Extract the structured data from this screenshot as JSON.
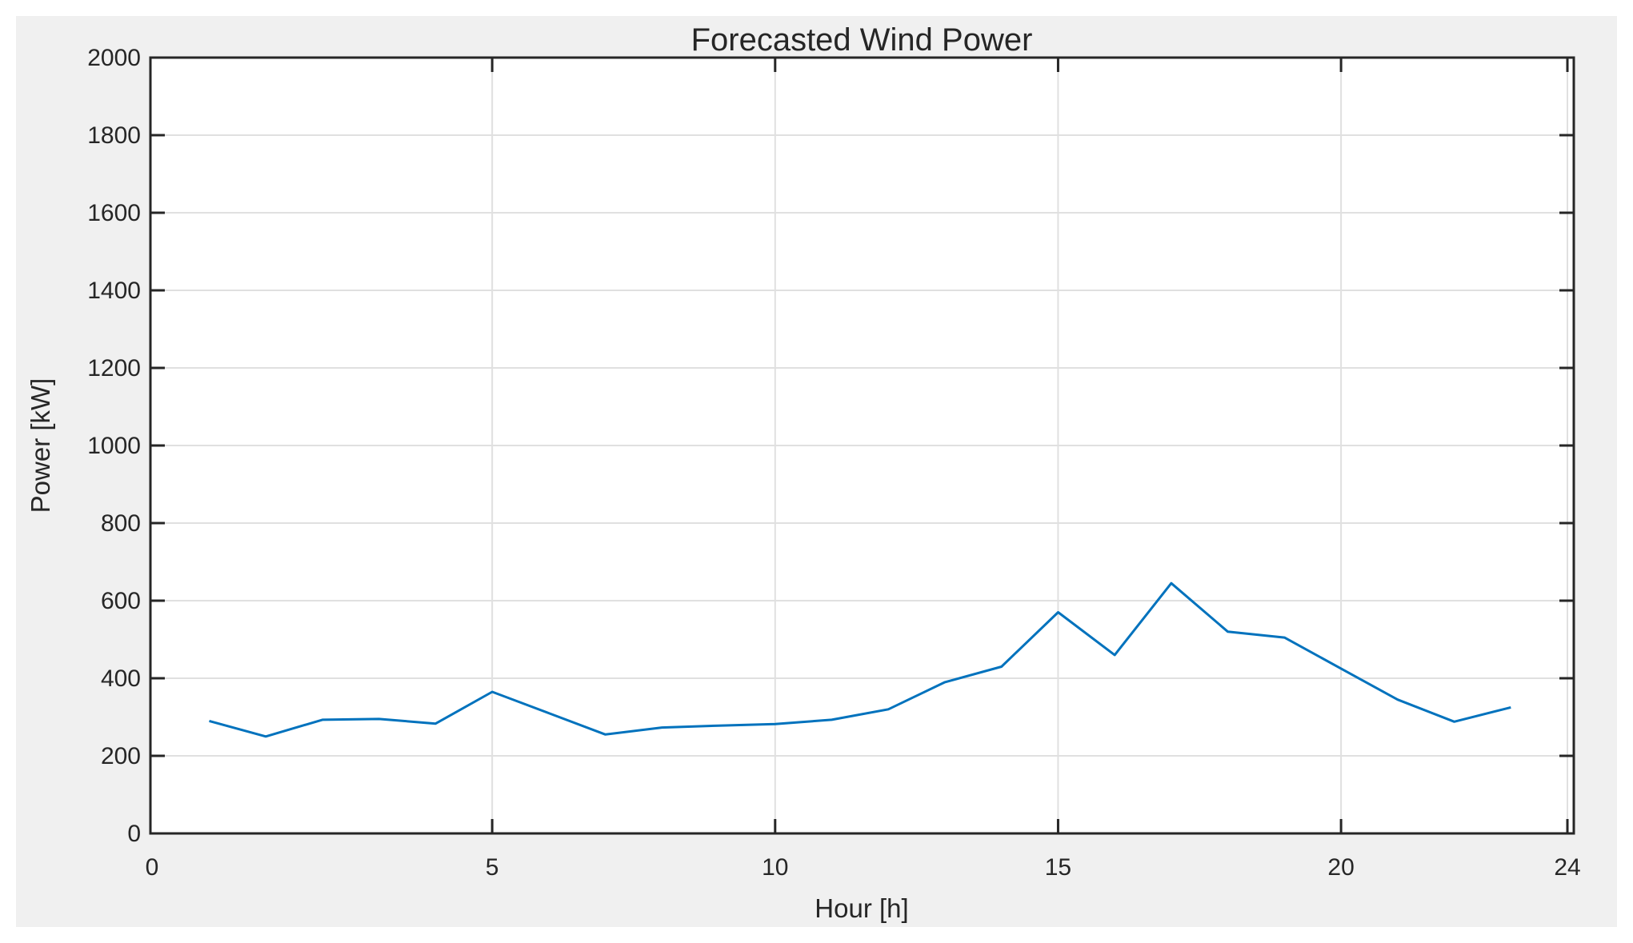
{
  "figure": {
    "background_color": "#f0f0f0",
    "plot_background_color": "#ffffff",
    "axis_color": "#262626",
    "grid_color": "#e0e0e0"
  },
  "chart_data": {
    "type": "line",
    "title": "Forecasted Wind Power",
    "xlabel": "Hour [h]",
    "ylabel": "Power [kW]",
    "xlim": [
      0,
      24
    ],
    "ylim": [
      0,
      2000
    ],
    "xticks": [
      0,
      5,
      10,
      15,
      20,
      24
    ],
    "yticks": [
      0,
      200,
      400,
      600,
      800,
      1000,
      1200,
      1400,
      1600,
      1800,
      2000
    ],
    "grid": true,
    "legend": "none",
    "line_color": "#0072BD",
    "series": [
      {
        "name": "Forecasted wind power",
        "x": [
          0,
          1,
          2,
          3,
          4,
          5,
          6,
          7,
          8,
          9,
          10,
          11,
          12,
          13,
          14,
          15,
          16,
          17,
          18,
          19,
          20,
          21,
          22,
          23
        ],
        "values": [
          290,
          250,
          293,
          295,
          283,
          365,
          310,
          255,
          273,
          278,
          282,
          293,
          320,
          390,
          430,
          570,
          460,
          645,
          520,
          505,
          425,
          345,
          288,
          325
        ]
      }
    ]
  }
}
